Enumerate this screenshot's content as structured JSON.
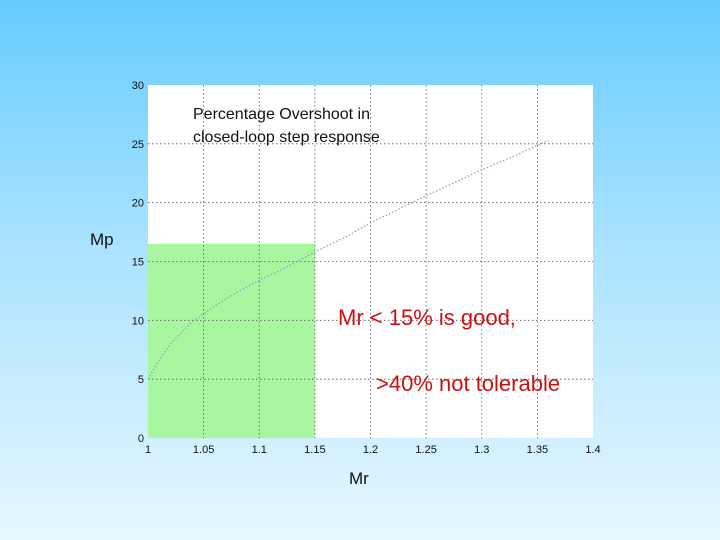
{
  "chart_data": {
    "type": "line",
    "title_lines": [
      "Percentage Overshoot in",
      "closed-loop step response"
    ],
    "xlabel": "Mr",
    "ylabel": "Mp",
    "xlim": [
      1,
      1.4
    ],
    "ylim": [
      0,
      30
    ],
    "xticks": [
      1,
      1.05,
      1.1,
      1.15,
      1.2,
      1.25,
      1.3,
      1.35,
      1.4
    ],
    "xtick_labels": [
      "1",
      "1.05",
      "1.1",
      "1.15",
      "1.2",
      "1.25",
      "1.3",
      "1.35",
      "1.4"
    ],
    "yticks": [
      0,
      5,
      10,
      15,
      20,
      25,
      30
    ],
    "ytick_labels": [
      "0",
      "5",
      "10",
      "15",
      "20",
      "25",
      "30"
    ],
    "grid": true,
    "series": [
      {
        "style": "dotted",
        "color": "#8899cc",
        "x": [
          1.0,
          1.01,
          1.02,
          1.04,
          1.06,
          1.08,
          1.1,
          1.12,
          1.15,
          1.18,
          1.2,
          1.22,
          1.25,
          1.28,
          1.3,
          1.33,
          1.36
        ],
        "y": [
          5.0,
          6.6,
          8.0,
          9.9,
          11.2,
          12.4,
          13.4,
          14.3,
          15.8,
          17.2,
          18.3,
          19.2,
          20.6,
          21.9,
          22.8,
          24.0,
          25.3
        ]
      }
    ],
    "highlight_region": {
      "x": [
        1,
        1.15
      ],
      "y": [
        0,
        16.5
      ],
      "color": "#a8f7a0"
    },
    "annotations": [
      "Mr < 15% is good,",
      ">40% not tolerable"
    ]
  }
}
